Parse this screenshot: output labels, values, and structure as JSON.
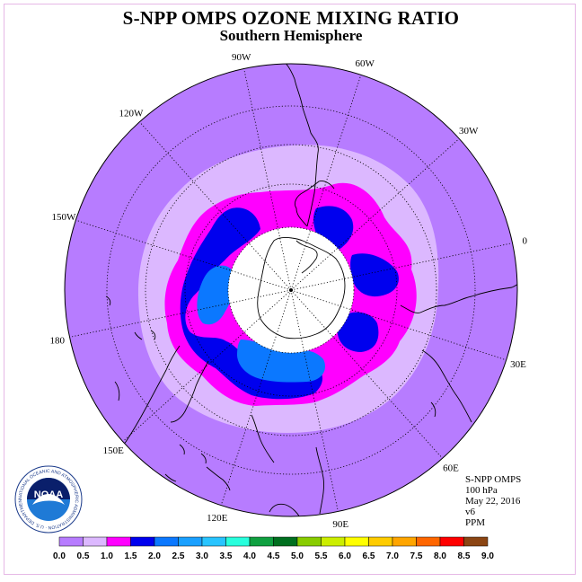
{
  "title": "S-NPP OMPS OZONE MIXING RATIO",
  "subtitle": "Southern Hemisphere",
  "longitude_labels": [
    "90W",
    "60W",
    "30W",
    "0",
    "30E",
    "60E",
    "90E",
    "120E",
    "150E",
    "180",
    "150W",
    "120W"
  ],
  "info": {
    "instrument": "S-NPP OMPS",
    "level": "100 hPa",
    "date": "May 22, 2016",
    "version": "v6",
    "units": "PPM"
  },
  "logo": {
    "text": "NOAA",
    "ring_text": "NATIONAL OCEANIC AND ATMOSPHERIC ADMINISTRATION · U.S. DEPARTMENT OF COMMERCE"
  },
  "colorbar": {
    "ticks": [
      "0.0",
      "0.5",
      "1.0",
      "1.5",
      "2.0",
      "2.5",
      "3.0",
      "3.5",
      "4.0",
      "4.5",
      "5.0",
      "5.5",
      "6.0",
      "6.5",
      "7.0",
      "7.5",
      "8.0",
      "8.5",
      "9.0"
    ],
    "colors": [
      "#b77cff",
      "#dcb8ff",
      "#ff00ff",
      "#0000ee",
      "#0b78ff",
      "#1aa0ff",
      "#28c4ff",
      "#28ffdd",
      "#0fa040",
      "#006f1f",
      "#88cc00",
      "#ccee00",
      "#ffff00",
      "#ffcc00",
      "#ffa500",
      "#ff6600",
      "#ff0000",
      "#8b4513"
    ]
  },
  "chart_data": {
    "type": "heatmap",
    "projection": "south polar stereographic",
    "variable": "ozone mixing ratio",
    "units": "PPM",
    "pressure_level": "100 hPa",
    "levels": [
      0.0,
      0.5,
      1.0,
      1.5,
      2.0,
      2.5,
      3.0,
      3.5,
      4.0,
      4.5,
      5.0,
      5.5,
      6.0,
      6.5,
      7.0,
      7.5,
      8.0,
      8.5,
      9.0
    ],
    "field_description": [
      {
        "range": "0.0-0.5",
        "region": "outer areas north of ~45S"
      },
      {
        "range": "0.5-1.0",
        "region": "ring around ~50-55S"
      },
      {
        "range": "1.0-1.5",
        "region": "ring around ~60S"
      },
      {
        "range": "1.5-2.0",
        "region": "lobes near 60-65S"
      },
      {
        "range": "2.0-2.5",
        "region": "patches near 150W-180 and 90E-120E"
      }
    ],
    "polar_no_data": "south of ~70S"
  }
}
